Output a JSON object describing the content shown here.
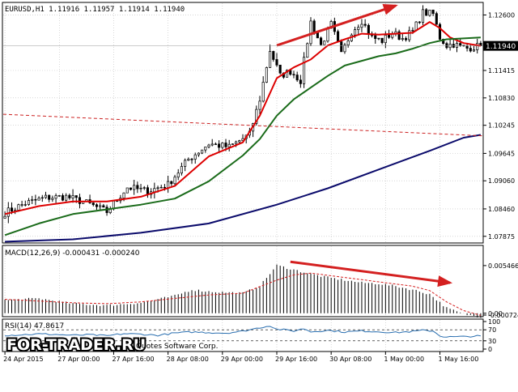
{
  "main_header": "EURUSD,H1  1.11916 1.11957 1.11914 1.11940",
  "macd_header": "MACD(12,26,9) -0.000431 -0.000240",
  "rsi_header": "RSI(14) 47.8617",
  "watermark": "FOR-TRADER.RU",
  "copyright": "Quotes Software Corp.",
  "current_price_label": "1.11940",
  "colors": {
    "candle": "#000000",
    "ma_fast": "#dd0000",
    "ma_mid": "#1a6b1a",
    "ma_slow": "#0b0b6b",
    "trend_dashed": "#cc2222",
    "arrow": "#d42020",
    "rsi": "#2a6fb0",
    "macd_signal": "#d42020",
    "price_box": "#000000"
  },
  "chart_data": [
    {
      "type": "candlestick",
      "panel": "main",
      "symbol": "EURUSD",
      "timeframe": "H1",
      "ylim": [
        1.0775,
        1.1285
      ],
      "yticks": [
        "1.12600",
        "1.11415",
        "1.10830",
        "1.10245",
        "1.09645",
        "1.09060",
        "1.08460",
        "1.07875"
      ],
      "ytick_values": [
        1.126,
        1.11415,
        1.1083,
        1.10245,
        1.09645,
        1.0906,
        1.0846,
        1.07875
      ],
      "xticks": [
        "24 Apr 2015",
        "27 Apr 00:00",
        "27 Apr 16:00",
        "28 Apr 08:00",
        "29 Apr 00:00",
        "29 Apr 16:00",
        "30 Apr 08:00",
        "1 May 00:00",
        "1 May 16:00"
      ],
      "xtick_bars": [
        0,
        16,
        32,
        48,
        64,
        80,
        96,
        112,
        128
      ],
      "bar_count": 141,
      "series": [
        {
          "name": "Close",
          "x": [
            0,
            6,
            12,
            18,
            24,
            30,
            36,
            42,
            48,
            54,
            60,
            66,
            72,
            75,
            78,
            81,
            84,
            87,
            90,
            93,
            96,
            99,
            102,
            105,
            108,
            111,
            114,
            117,
            120,
            123,
            126,
            128,
            130,
            132,
            134,
            136,
            138,
            140
          ],
          "values": [
            1.0838,
            1.0858,
            1.087,
            1.0872,
            1.0859,
            1.084,
            1.0892,
            1.0884,
            1.0898,
            1.0952,
            1.0985,
            1.0978,
            1.1005,
            1.108,
            1.1185,
            1.113,
            1.114,
            1.112,
            1.1245,
            1.1195,
            1.124,
            1.1175,
            1.1225,
            1.1248,
            1.1212,
            1.1205,
            1.1222,
            1.121,
            1.1225,
            1.1265,
            1.1262,
            1.1212,
            1.1195,
            1.1198,
            1.1192,
            1.1189,
            1.1192,
            1.1194
          ]
        },
        {
          "name": "MA fast",
          "x": [
            0,
            10,
            20,
            30,
            40,
            50,
            60,
            70,
            75,
            80,
            85,
            90,
            95,
            100,
            105,
            110,
            115,
            120,
            125,
            128,
            131,
            135,
            140
          ],
          "values": [
            1.0835,
            1.0852,
            1.0862,
            1.0862,
            1.0872,
            1.0895,
            1.0958,
            1.0988,
            1.1045,
            1.1125,
            1.1148,
            1.1165,
            1.1195,
            1.1208,
            1.122,
            1.1218,
            1.122,
            1.1222,
            1.1245,
            1.1232,
            1.1212,
            1.12,
            1.1194
          ]
        },
        {
          "name": "MA mid",
          "x": [
            0,
            10,
            20,
            30,
            40,
            50,
            60,
            70,
            75,
            80,
            85,
            90,
            95,
            100,
            105,
            110,
            115,
            120,
            125,
            130,
            135,
            140
          ],
          "values": [
            1.079,
            1.0815,
            1.0835,
            1.0845,
            1.0855,
            1.0868,
            1.0905,
            1.096,
            1.0995,
            1.1045,
            1.108,
            1.1105,
            1.113,
            1.1152,
            1.1162,
            1.1172,
            1.1178,
            1.1188,
            1.12,
            1.1208,
            1.121,
            1.1212
          ]
        },
        {
          "name": "MA slow",
          "x": [
            0,
            20,
            40,
            60,
            80,
            95,
            110,
            125,
            135,
            140
          ],
          "values": [
            1.0776,
            1.0781,
            1.0795,
            1.0815,
            1.0855,
            1.089,
            1.093,
            1.097,
            1.0998,
            1.1004
          ]
        }
      ],
      "trend_dashed_line": {
        "x": [
          0,
          141
        ],
        "values": [
          1.1048,
          1.1002
        ]
      },
      "arrow": {
        "x": [
          80,
          115
        ],
        "values": [
          1.1195,
          1.128
        ]
      },
      "current_price": 1.1194
    },
    {
      "type": "bar",
      "panel": "macd",
      "ylim": [
        -0.0003,
        0.0062
      ],
      "yticks": [
        "0.005466",
        "0.00",
        "-0.000724"
      ],
      "ytick_values": [
        0.005466,
        0.0,
        -0.000724
      ],
      "series": [
        {
          "name": "MACD",
          "x": [
            0,
            10,
            20,
            30,
            40,
            50,
            55,
            60,
            70,
            75,
            80,
            85,
            90,
            95,
            100,
            105,
            110,
            115,
            120,
            125,
            130,
            135,
            140
          ],
          "values": [
            0.0015,
            0.0017,
            0.0011,
            0.0009,
            0.0012,
            0.002,
            0.0027,
            0.0025,
            0.0023,
            0.0031,
            0.0055,
            0.005,
            0.0045,
            0.0041,
            0.0038,
            0.0035,
            0.0034,
            0.0031,
            0.0027,
            0.0022,
            0.0006,
            -0.0001,
            -0.00043
          ]
        },
        {
          "name": "Signal",
          "x": [
            0,
            10,
            20,
            30,
            40,
            50,
            60,
            70,
            80,
            85,
            90,
            100,
            110,
            120,
            125,
            130,
            135,
            140
          ],
          "values": [
            0.0016,
            0.0014,
            0.0012,
            0.0011,
            0.0013,
            0.0017,
            0.0021,
            0.0023,
            0.0038,
            0.0044,
            0.0046,
            0.0041,
            0.0036,
            0.0031,
            0.0026,
            0.0013,
            0.0003,
            -0.00024
          ]
        }
      ],
      "arrow": {
        "x": [
          84,
          131
        ],
        "values": [
          0.0059,
          0.0035
        ]
      }
    },
    {
      "type": "line",
      "panel": "rsi",
      "ylim": [
        0,
        100
      ],
      "yticks": [
        "100",
        "70",
        "30",
        "0"
      ],
      "ytick_values": [
        100,
        70,
        30,
        0
      ],
      "levels": [
        70,
        30
      ],
      "series": [
        {
          "name": "RSI",
          "x": [
            0,
            5,
            10,
            15,
            20,
            25,
            30,
            35,
            40,
            45,
            50,
            55,
            60,
            65,
            70,
            75,
            78,
            80,
            82,
            85,
            88,
            90,
            95,
            100,
            105,
            110,
            115,
            120,
            123,
            126,
            128,
            130,
            135,
            140
          ],
          "values": [
            50,
            52,
            55,
            53,
            50,
            52,
            48,
            56,
            54,
            50,
            58,
            62,
            60,
            58,
            65,
            78,
            85,
            72,
            70,
            66,
            74,
            63,
            68,
            62,
            66,
            63,
            60,
            64,
            68,
            66,
            48,
            44,
            45,
            47.86
          ]
        }
      ]
    }
  ]
}
